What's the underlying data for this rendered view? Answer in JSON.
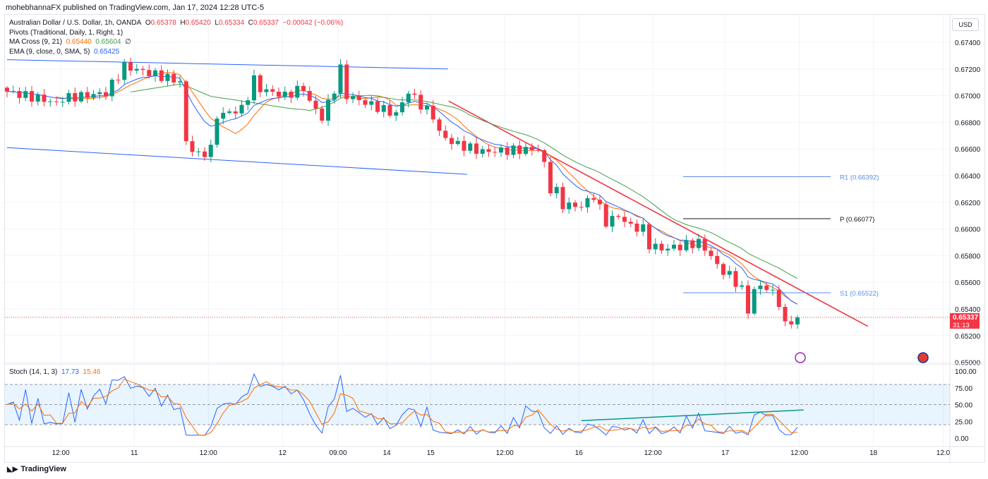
{
  "publisher_line": "mohebhannaFX published on TradingView.com, Jan 17, 2024 12:28 UTC-5",
  "symbol": {
    "name": "Australian Dollar / U.S. Dollar, 1h, OANDA",
    "o_label": "O",
    "o": "0.65378",
    "h_label": "H",
    "h": "0.65420",
    "l_label": "L",
    "l": "0.65334",
    "c_label": "C",
    "c": "0.65337",
    "change": "−0.00042 (−0.06%)"
  },
  "indicators": {
    "pivots": "Pivots (Traditional, Daily, 1, Right, 1)",
    "ma_cross": "MA Cross (9, 21)",
    "ma_fast": "0.65440",
    "ma_slow": "0.65604",
    "ma_icon": "∅",
    "ema": "EMA (9, close, 0, SMA, 5)",
    "ema_val": "0.65425"
  },
  "currency_button": "USD",
  "current_price": {
    "value": "0.65337",
    "countdown": "31:13"
  },
  "brand": "TradingView",
  "colors": {
    "up": "#089981",
    "down": "#f23645",
    "ma_fast": "#ff6d00",
    "ma_slow": "#43a047",
    "ema": "#2962ff",
    "trend": "#f23645",
    "channel": "#2962ff"
  },
  "chart_data": [
    {
      "type": "candlestick",
      "title": "Australian Dollar / U.S. Dollar, 1h, OANDA",
      "yticks": [
        "0.67400",
        "0.67200",
        "0.67000",
        "0.66800",
        "0.66600",
        "0.66400",
        "0.66200",
        "0.66000",
        "0.65800",
        "0.65600",
        "0.65400",
        "0.65200",
        "0.65000"
      ],
      "ylim": [
        0.65,
        0.674
      ],
      "xticks": [
        [
          "12:00",
          8.7
        ],
        [
          "11",
          20.6
        ],
        [
          "12:00",
          32.6
        ],
        [
          "12",
          44.6
        ],
        [
          "09:00",
          53.6
        ],
        [
          "14",
          61.5
        ],
        [
          "15",
          68.6
        ],
        [
          "12:00",
          80.6
        ],
        [
          "16",
          92.6
        ],
        [
          "12:00",
          104.6
        ],
        [
          "17",
          116.3
        ],
        [
          "12:00",
          128.3
        ],
        [
          "18",
          140.3
        ],
        [
          "12:0",
          151.6
        ]
      ],
      "close_keypoints": [
        [
          0,
          0.6703
        ],
        [
          6,
          0.6697
        ],
        [
          8,
          0.6694
        ],
        [
          9,
          0.6698
        ],
        [
          16,
          0.6702
        ],
        [
          19,
          0.6722
        ],
        [
          27,
          0.6712
        ],
        [
          28,
          0.671
        ],
        [
          29,
          0.6665
        ],
        [
          31,
          0.6655
        ],
        [
          33,
          0.666
        ],
        [
          34,
          0.6685
        ],
        [
          38,
          0.669
        ],
        [
          39,
          0.67
        ],
        [
          40,
          0.6712
        ],
        [
          41,
          0.6705
        ],
        [
          45,
          0.67
        ],
        [
          48,
          0.6706
        ],
        [
          49,
          0.6695
        ],
        [
          50,
          0.669
        ],
        [
          51,
          0.6683
        ],
        [
          53,
          0.6705
        ],
        [
          54,
          0.672
        ],
        [
          55,
          0.67
        ],
        [
          63,
          0.6686
        ],
        [
          64,
          0.6695
        ],
        [
          65,
          0.6703
        ],
        [
          67,
          0.6693
        ],
        [
          69,
          0.6685
        ],
        [
          70,
          0.6672
        ],
        [
          72,
          0.6665
        ],
        [
          74,
          0.6662
        ],
        [
          77,
          0.6658
        ],
        [
          86,
          0.666
        ],
        [
          87,
          0.6648
        ],
        [
          88,
          0.663
        ],
        [
          89,
          0.6628
        ],
        [
          90,
          0.6618
        ],
        [
          93,
          0.6617
        ],
        [
          95,
          0.6625
        ],
        [
          96,
          0.6615
        ],
        [
          97,
          0.6605
        ],
        [
          99,
          0.661
        ],
        [
          101,
          0.6602
        ],
        [
          103,
          0.66
        ],
        [
          104,
          0.6588
        ],
        [
          106,
          0.6585
        ],
        [
          109,
          0.6587
        ],
        [
          112,
          0.659
        ],
        [
          114,
          0.658
        ],
        [
          115,
          0.6572
        ],
        [
          117,
          0.6565
        ],
        [
          119,
          0.6555
        ],
        [
          120,
          0.6538
        ],
        [
          121,
          0.6555
        ],
        [
          123,
          0.6557
        ],
        [
          125,
          0.6545
        ],
        [
          126,
          0.6528
        ],
        [
          127,
          0.653
        ],
        [
          128,
          0.65337
        ]
      ],
      "pivots": [
        {
          "label": "R1 (0.66392)",
          "value": 0.66392
        },
        {
          "label": "P (0.66077)",
          "value": 0.66077
        },
        {
          "label": "S1 (0.65522)",
          "value": 0.65522
        }
      ],
      "channel_upper": [
        [
          0,
          0.6727
        ],
        [
          71.4,
          0.672
        ]
      ],
      "channel_lower": [
        [
          0,
          0.6661
        ],
        [
          74.5,
          0.6641
        ]
      ],
      "downtrend": [
        [
          71.5,
          0.6696
        ],
        [
          139.4,
          0.6527
        ]
      ]
    },
    {
      "type": "line",
      "title": "Stoch (14, 1, 3)",
      "k": "17.73",
      "d": "15.46",
      "yticks": [
        "100.00",
        "75.00",
        "50.00",
        "25.00",
        "0.00"
      ],
      "ylim": [
        0,
        100
      ],
      "bands": [
        20,
        80
      ],
      "divergence_line": [
        [
          93,
          26
        ],
        [
          129,
          42
        ]
      ]
    }
  ]
}
